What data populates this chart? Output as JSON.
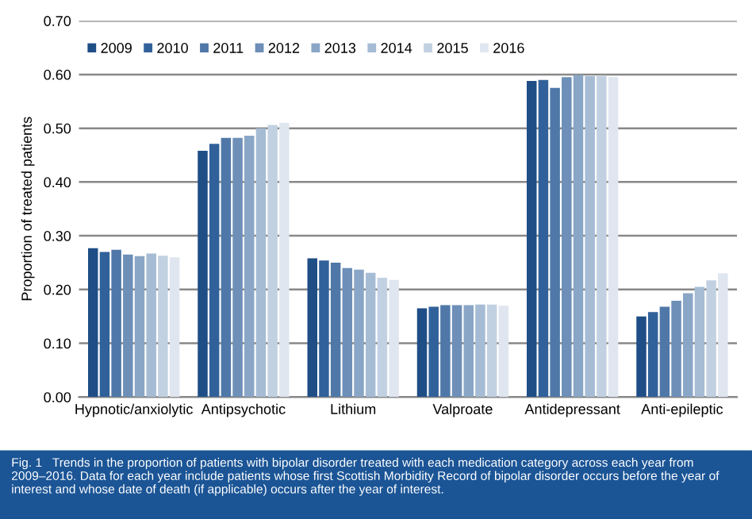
{
  "chart_data": {
    "type": "bar",
    "ylabel": "Proportion of treated patients",
    "categories": [
      "Hypnotic/anxiolytic",
      "Antipsychotic",
      "Lithium",
      "Valproate",
      "Antidepressant",
      "Anti-epileptic"
    ],
    "series": [
      {
        "name": "2009",
        "color": "#1f4e86",
        "values": [
          0.277,
          0.458,
          0.258,
          0.165,
          0.588,
          0.15
        ]
      },
      {
        "name": "2010",
        "color": "#31619a",
        "values": [
          0.27,
          0.471,
          0.254,
          0.168,
          0.59,
          0.158
        ]
      },
      {
        "name": "2011",
        "color": "#4f78a8",
        "values": [
          0.274,
          0.482,
          0.25,
          0.171,
          0.575,
          0.168
        ]
      },
      {
        "name": "2012",
        "color": "#6d8fb8",
        "values": [
          0.265,
          0.482,
          0.24,
          0.171,
          0.595,
          0.179
        ]
      },
      {
        "name": "2013",
        "color": "#8aa6c6",
        "values": [
          0.262,
          0.486,
          0.237,
          0.171,
          0.599,
          0.193
        ]
      },
      {
        "name": "2014",
        "color": "#a6bcd5",
        "values": [
          0.267,
          0.5,
          0.231,
          0.172,
          0.597,
          0.205
        ]
      },
      {
        "name": "2015",
        "color": "#c2d1e2",
        "values": [
          0.263,
          0.506,
          0.222,
          0.172,
          0.597,
          0.217
        ]
      },
      {
        "name": "2016",
        "color": "#dfe6ef",
        "values": [
          0.26,
          0.51,
          0.218,
          0.17,
          0.595,
          0.23
        ]
      }
    ],
    "ylim": [
      0,
      0.7
    ],
    "yticks": [
      {
        "value": 0,
        "label": "0.00"
      },
      {
        "value": 0.1,
        "label": "0.10"
      },
      {
        "value": 0.2,
        "label": "0.20"
      },
      {
        "value": 0.3,
        "label": "0.30"
      },
      {
        "value": 0.4,
        "label": "0.40"
      },
      {
        "value": 0.5,
        "label": "0.50"
      },
      {
        "value": 0.6,
        "label": "0.60"
      },
      {
        "value": 0.7,
        "label": "0.70"
      }
    ],
    "grid": "y",
    "legend": "top left",
    "annotations": [
      "Fig. 1   Trends in the proportion of patients with bipolar disorder treated with each medication category across each year from 2009–2016. Data for each year include patients whose first Scottish Morbidity Record of bipolar disorder occurs before the year of interest and whose date of death (if applicable) occurs after the year of interest."
    ]
  }
}
